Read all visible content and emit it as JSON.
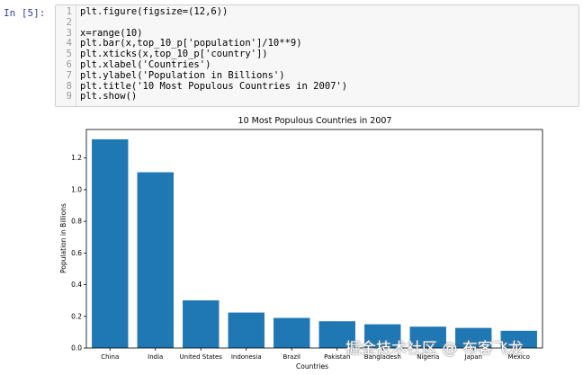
{
  "cell": {
    "prompt": "In [5]:",
    "lines": [
      "plt.figure(figsize=(12,6))",
      "",
      "x=range(10)",
      "plt.bar(x,top_10_p['population']/10**9)",
      "plt.xticks(x,top_10_p['country'])",
      "plt.xlabel('Countries')",
      "plt.ylabel('Population in Billions')",
      "plt.title('10 Most Populous Countries in 2007')",
      "plt.show()"
    ],
    "line_numbers": [
      "1",
      "2",
      "3",
      "4",
      "5",
      "6",
      "7",
      "8",
      "9"
    ]
  },
  "chart_data": {
    "type": "bar",
    "title": "10 Most Populous Countries in 2007",
    "xlabel": "Countries",
    "ylabel": "Population in Billions",
    "categories": [
      "China",
      "India",
      "United States",
      "Indonesia",
      "Brazil",
      "Pakistan",
      "Bangladesh",
      "Nigeria",
      "Japan",
      "Mexico"
    ],
    "values": [
      1.318,
      1.11,
      0.301,
      0.224,
      0.19,
      0.169,
      0.15,
      0.135,
      0.127,
      0.109
    ],
    "ylim": [
      0,
      1.38
    ],
    "yticks": [
      "0.0",
      "0.2",
      "0.4",
      "0.6",
      "0.8",
      "1.0",
      "1.2"
    ],
    "bar_color": "#1f77b4",
    "grid": false
  },
  "watermark": "掘金技术社区 @ 布客飞龙"
}
